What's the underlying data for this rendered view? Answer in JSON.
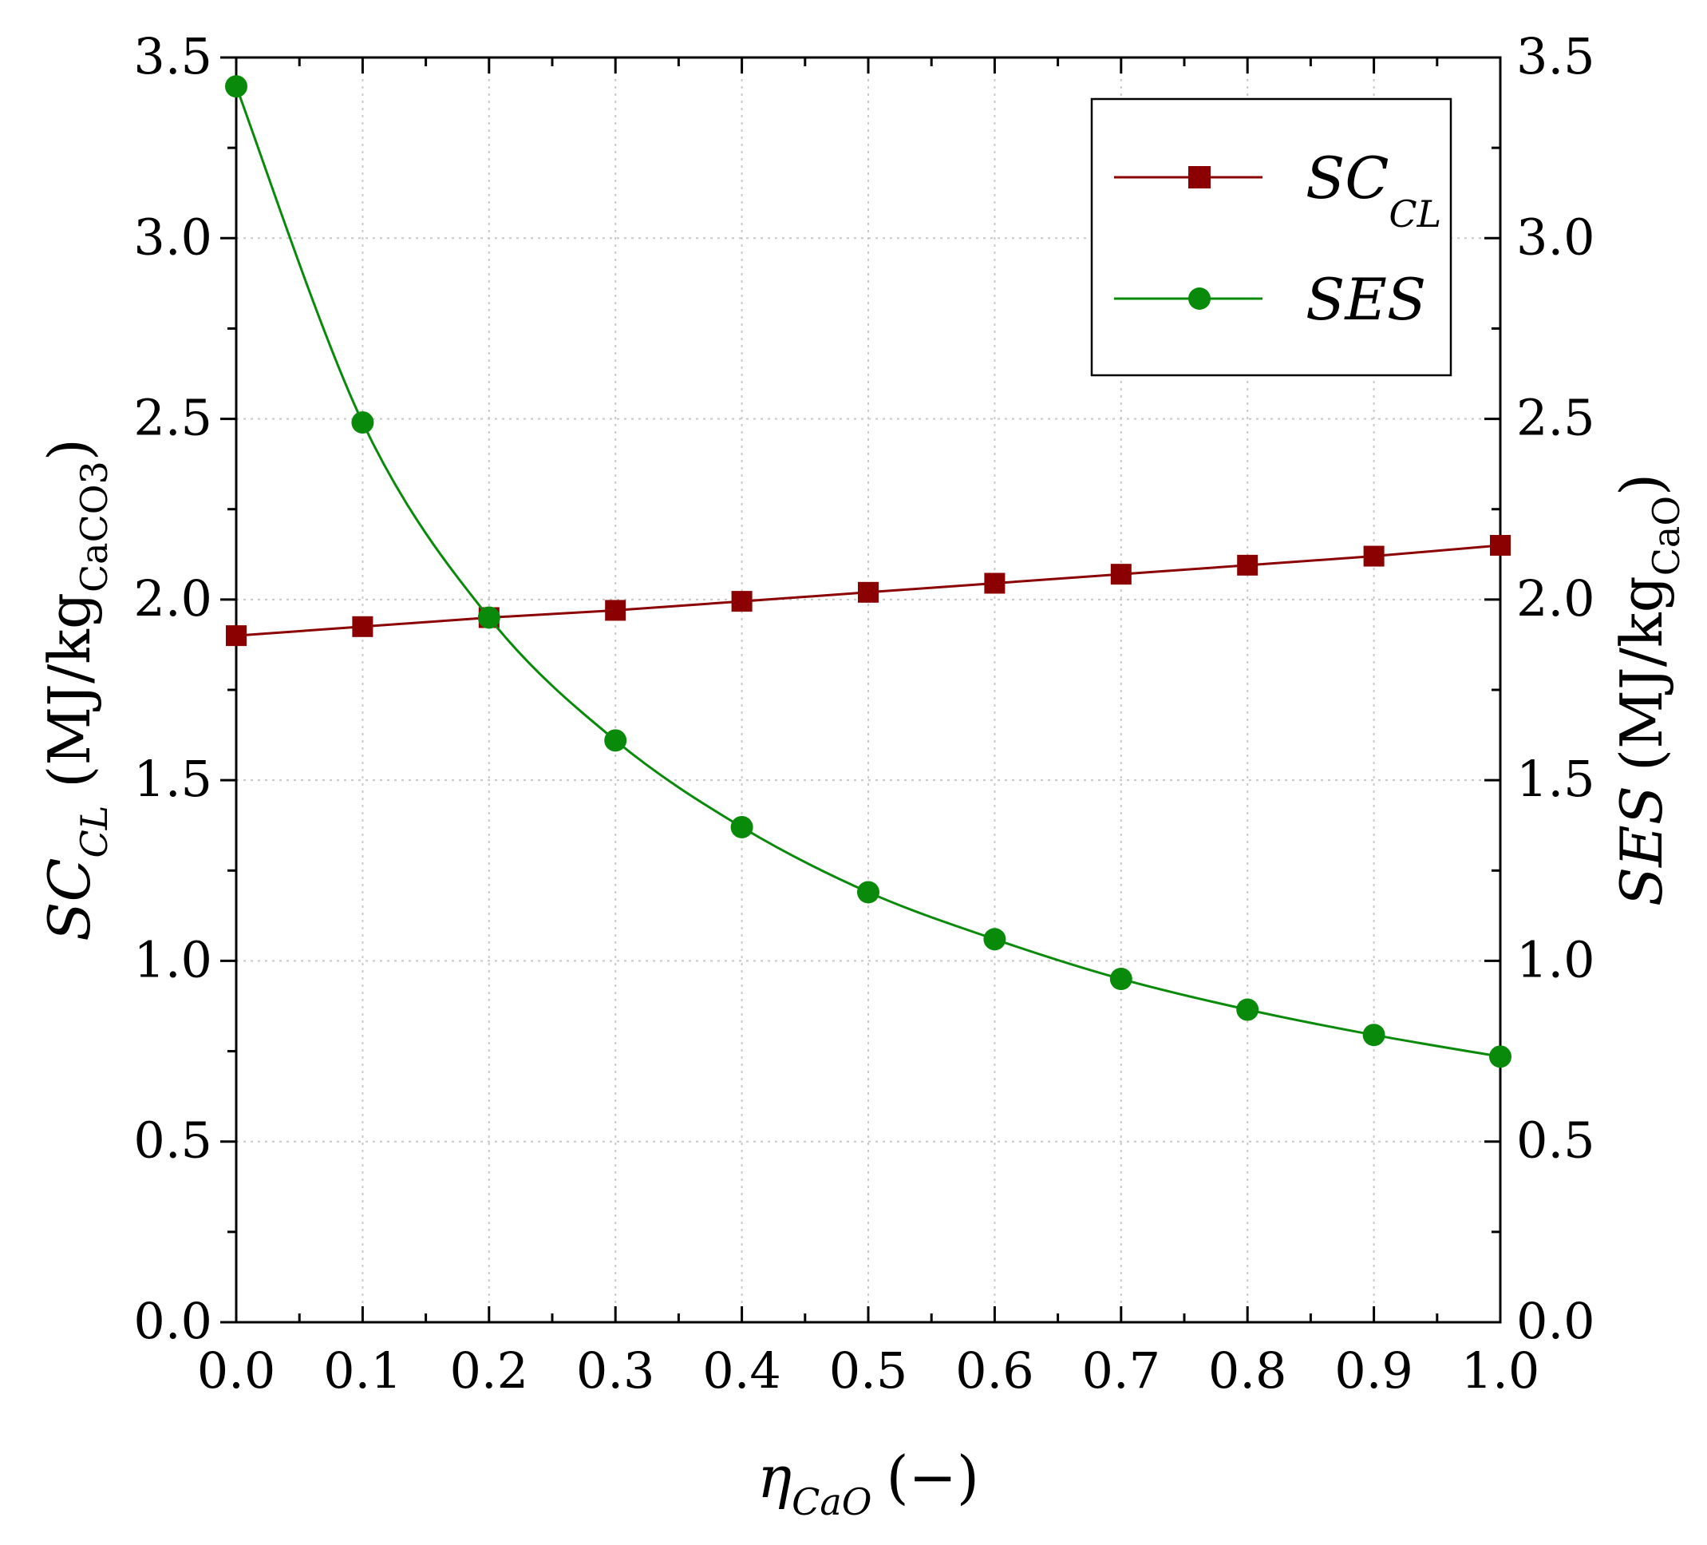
{
  "chart_data": {
    "type": "line",
    "x": [
      0.0,
      0.1,
      0.2,
      0.3,
      0.4,
      0.5,
      0.6,
      0.7,
      0.8,
      0.9,
      1.0
    ],
    "xlim": [
      0.0,
      1.0
    ],
    "ylim": [
      0.0,
      3.5
    ],
    "x_ticks": [
      "0.0",
      "0.1",
      "0.2",
      "0.3",
      "0.4",
      "0.5",
      "0.6",
      "0.7",
      "0.8",
      "0.9",
      "1.0"
    ],
    "y_ticks": [
      "0.0",
      "0.5",
      "1.0",
      "1.5",
      "2.0",
      "2.5",
      "3.0",
      "3.5"
    ],
    "xlabel": {
      "main": "η",
      "sub": "CaO",
      "unit": "(−)"
    },
    "ylabel_left": {
      "main": "SC",
      "sub": "CL",
      "unit_open": "(MJ/kg",
      "unit_sub": "CaCO3",
      "unit_close": ")"
    },
    "ylabel_right": {
      "main": "SES",
      "unit_open": "(MJ/kg",
      "unit_sub": "CaO",
      "unit_close": ")"
    },
    "grid": true,
    "legend_position": "top-right",
    "series": [
      {
        "name": "SC",
        "name_sub": "CL",
        "marker": "square",
        "color": "#8b0000",
        "values": [
          1.9,
          1.925,
          1.95,
          1.97,
          1.995,
          2.02,
          2.045,
          2.07,
          2.095,
          2.12,
          2.15
        ]
      },
      {
        "name": "SES",
        "name_sub": "",
        "marker": "circle",
        "color": "#0a8a0a",
        "values": [
          3.42,
          2.49,
          1.95,
          1.61,
          1.37,
          1.19,
          1.06,
          0.95,
          0.865,
          0.795,
          0.735
        ]
      }
    ]
  }
}
